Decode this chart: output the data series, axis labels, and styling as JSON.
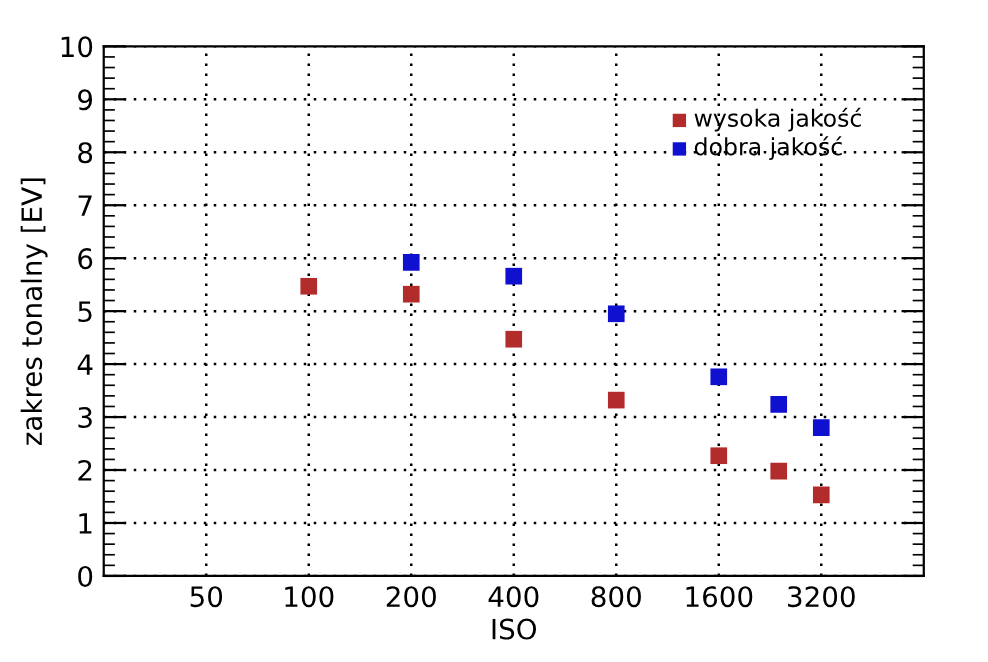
{
  "chart_data": {
    "type": "scatter",
    "xlabel": "ISO",
    "ylabel": "zakres tonalny [EV]",
    "log": "x",
    "xlim": [
      25,
      6400
    ],
    "xticks": [
      50,
      100,
      200,
      400,
      800,
      1600,
      3200
    ],
    "ylim": [
      0,
      10
    ],
    "yticks": [
      0,
      1,
      2,
      3,
      4,
      5,
      6,
      7,
      8,
      9,
      10
    ],
    "grid": true,
    "legend": "top right",
    "marker": "square",
    "series": [
      {
        "name": "wysoka jakość",
        "color": "#b22c2c",
        "x": [
          100,
          200,
          400,
          800,
          1600,
          2400,
          3200
        ],
        "values": [
          5.47,
          5.32,
          4.47,
          3.32,
          2.27,
          1.98,
          1.53
        ]
      },
      {
        "name": "dobra jakość",
        "color": "#1010d0",
        "x": [
          200,
          400,
          800,
          1600,
          2400,
          3200
        ],
        "values": [
          5.92,
          5.66,
          4.95,
          3.76,
          3.24,
          2.8
        ]
      }
    ]
  }
}
